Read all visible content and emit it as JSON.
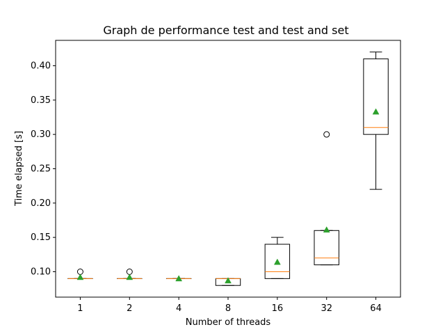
{
  "chart_data": {
    "type": "box",
    "title": "Graph de performance test and test and set",
    "xlabel": "Number of threads",
    "ylabel": "Time elapsed [s]",
    "ylim": [
      0.063,
      0.437
    ],
    "yticks": [
      "0.10",
      "0.15",
      "0.20",
      "0.25",
      "0.30",
      "0.35",
      "0.40"
    ],
    "ytick_values": [
      0.1,
      0.15,
      0.2,
      0.25,
      0.3,
      0.35,
      0.4
    ],
    "categories": [
      "1",
      "2",
      "4",
      "8",
      "16",
      "32",
      "64"
    ],
    "boxes": [
      {
        "category": "1",
        "whisker_low": 0.09,
        "q1": 0.09,
        "median": 0.09,
        "q3": 0.09,
        "whisker_high": 0.09,
        "mean": 0.092,
        "outliers": [
          0.1
        ]
      },
      {
        "category": "2",
        "whisker_low": 0.09,
        "q1": 0.09,
        "median": 0.09,
        "q3": 0.09,
        "whisker_high": 0.09,
        "mean": 0.092,
        "outliers": [
          0.1
        ]
      },
      {
        "category": "4",
        "whisker_low": 0.09,
        "q1": 0.09,
        "median": 0.09,
        "q3": 0.09,
        "whisker_high": 0.09,
        "mean": 0.09,
        "outliers": []
      },
      {
        "category": "8",
        "whisker_low": 0.08,
        "q1": 0.08,
        "median": 0.09,
        "q3": 0.09,
        "whisker_high": 0.09,
        "mean": 0.087,
        "outliers": []
      },
      {
        "category": "16",
        "whisker_low": 0.09,
        "q1": 0.09,
        "median": 0.1,
        "q3": 0.14,
        "whisker_high": 0.15,
        "mean": 0.114,
        "outliers": []
      },
      {
        "category": "32",
        "whisker_low": 0.11,
        "q1": 0.11,
        "median": 0.12,
        "q3": 0.16,
        "whisker_high": 0.16,
        "mean": 0.161,
        "outliers": [
          0.3
        ]
      },
      {
        "category": "64",
        "whisker_low": 0.22,
        "q1": 0.3,
        "median": 0.31,
        "q3": 0.41,
        "whisker_high": 0.42,
        "mean": 0.333,
        "outliers": []
      }
    ],
    "colors": {
      "box": "#000000",
      "median": "#ff7f0e",
      "mean": "#2ca02c",
      "outlier": "#000000"
    },
    "grid": false,
    "legend": "none"
  }
}
